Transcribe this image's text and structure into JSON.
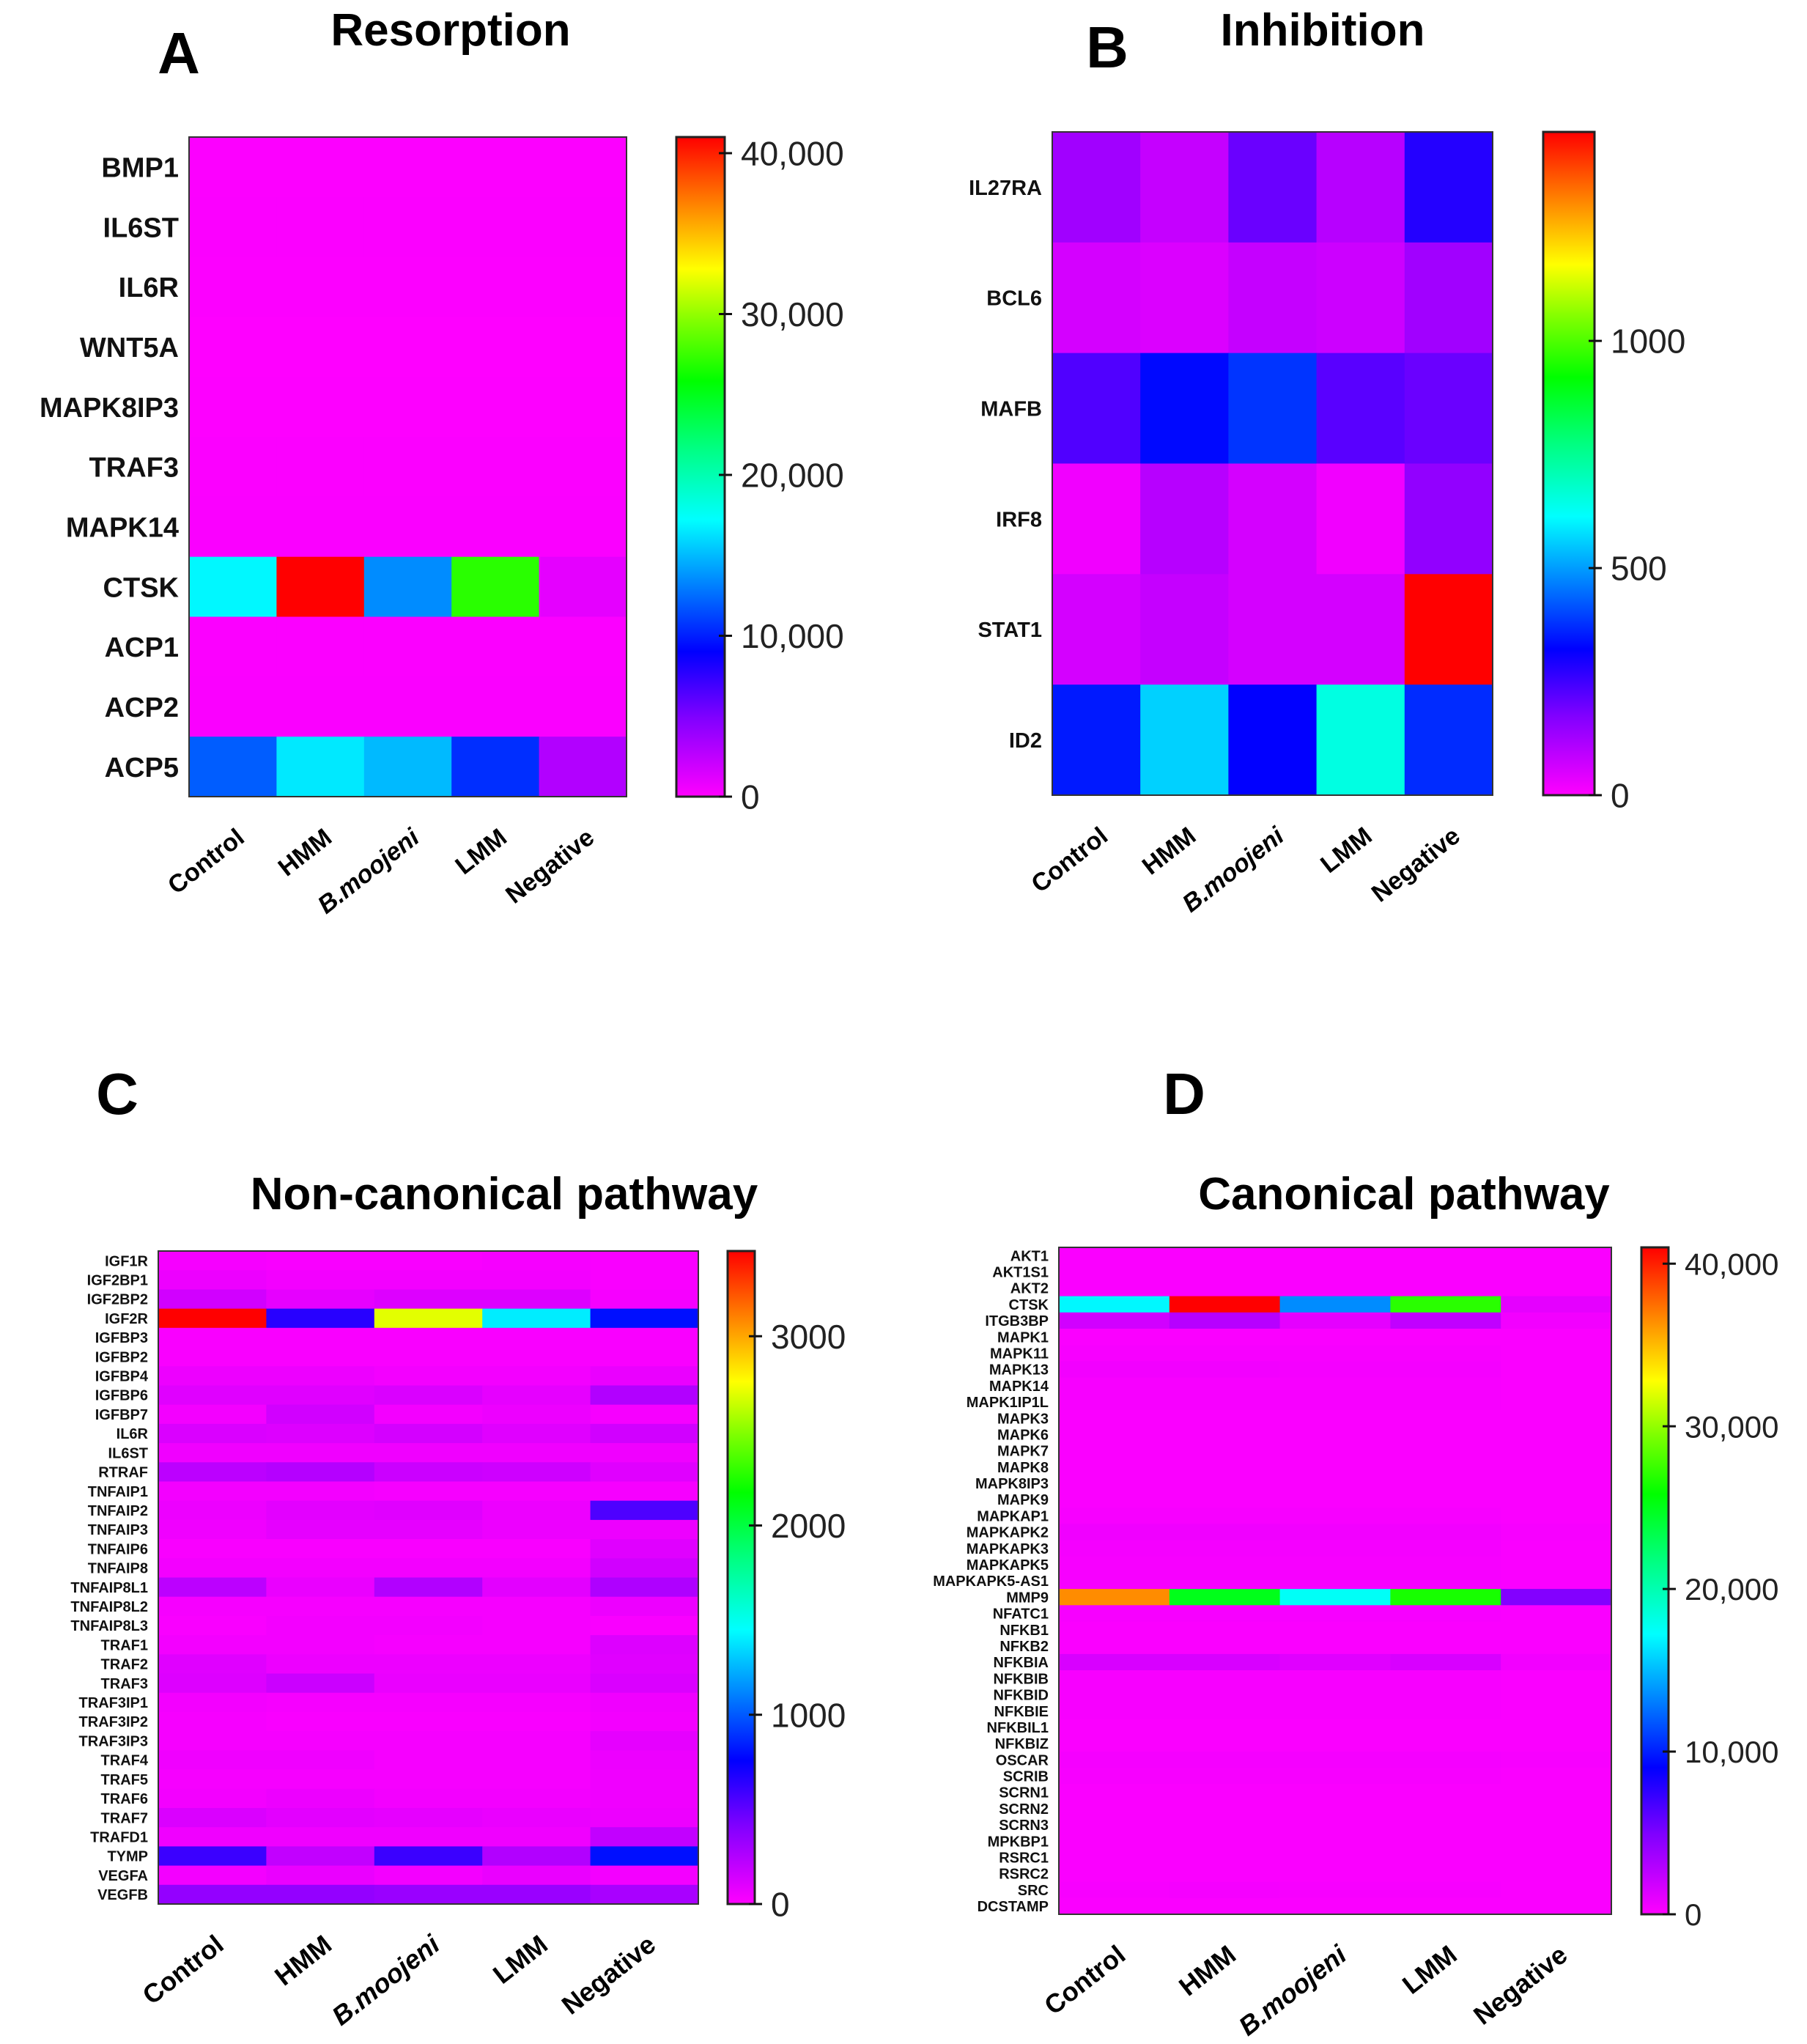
{
  "colormap": [
    [
      0.0,
      "#ff00ff"
    ],
    [
      0.12,
      "#8000ff"
    ],
    [
      0.22,
      "#0000ff"
    ],
    [
      0.32,
      "#0080ff"
    ],
    [
      0.42,
      "#00ffff"
    ],
    [
      0.53,
      "#00ff80"
    ],
    [
      0.63,
      "#00ff00"
    ],
    [
      0.72,
      "#80ff00"
    ],
    [
      0.8,
      "#ffff00"
    ],
    [
      0.9,
      "#ff8000"
    ],
    [
      1.0,
      "#ff0000"
    ]
  ],
  "chart_data": [
    {
      "type": "heatmap",
      "panel_letter": "A",
      "title": "Resorption",
      "columns": [
        "Control",
        "HMM",
        "B.moojeni",
        "LMM",
        "Negative"
      ],
      "rows": [
        "BMP1",
        "IL6ST",
        "IL6R",
        "WNT5A",
        "MAPK8IP3",
        "TRAF3",
        "MAPK14",
        "CTSK",
        "ACP1",
        "ACP2",
        "ACP5"
      ],
      "values": [
        [
          100,
          100,
          100,
          100,
          100
        ],
        [
          150,
          150,
          150,
          150,
          150
        ],
        [
          120,
          120,
          120,
          120,
          120
        ],
        [
          50,
          50,
          50,
          50,
          50
        ],
        [
          80,
          80,
          80,
          80,
          80
        ],
        [
          150,
          150,
          150,
          150,
          150
        ],
        [
          200,
          200,
          200,
          200,
          200
        ],
        [
          17000,
          41000,
          13500,
          27000,
          1000
        ],
        [
          150,
          150,
          150,
          150,
          150
        ],
        [
          200,
          200,
          200,
          200,
          200
        ],
        [
          12000,
          16500,
          15000,
          10500,
          3000
        ]
      ],
      "range": [
        0,
        41000
      ],
      "colorbar_ticks": [
        {
          "value": 0,
          "label": "0"
        },
        {
          "value": 10000,
          "label": "10,000"
        },
        {
          "value": 20000,
          "label": "20,000"
        },
        {
          "value": 30000,
          "label": "30,000"
        },
        {
          "value": 40000,
          "label": "40,000"
        }
      ]
    },
    {
      "type": "heatmap",
      "panel_letter": "B",
      "title": "Inhibition",
      "columns": [
        "Control",
        "HMM",
        "B.moojeni",
        "LMM",
        "Negative"
      ],
      "rows": [
        "IL27RA",
        "BCL6",
        "MAFB",
        "IRF8",
        "STAT1",
        "ID2"
      ],
      "values": [
        [
          130,
          80,
          200,
          100,
          280
        ],
        [
          60,
          50,
          80,
          70,
          130
        ],
        [
          230,
          330,
          380,
          220,
          200
        ],
        [
          20,
          100,
          60,
          20,
          150
        ],
        [
          60,
          80,
          60,
          60,
          1460
        ],
        [
          350,
          560,
          320,
          650,
          370
        ]
      ],
      "range": [
        0,
        1460
      ],
      "colorbar_ticks": [
        {
          "value": 0,
          "label": "0"
        },
        {
          "value": 500,
          "label": "500"
        },
        {
          "value": 1000,
          "label": "1000"
        }
      ]
    },
    {
      "type": "heatmap",
      "panel_letter": "C",
      "title": "Non-canonical pathway",
      "columns": [
        "Control",
        "HMM",
        "B.moojeni",
        "LMM",
        "Negative"
      ],
      "rows": [
        "IGF1R",
        "IGF2BP1",
        "IGF2BP2",
        "IGF2R",
        "IGFBP3",
        "IGFBP2",
        "IGFBP4",
        "IGFBP6",
        "IGFBP7",
        "IL6R",
        "IL6ST",
        "RTRAF",
        "TNFAIP1",
        "TNFAIP2",
        "TNFAIP3",
        "TNFAIP6",
        "TNFAIP8",
        "TNFAIP8L1",
        "TNFAIP8L2",
        "TNFAIP8L3",
        "TRAF1",
        "TRAF2",
        "TRAF3",
        "TRAF3IP1",
        "TRAF3IP2",
        "TRAF3IP3",
        "TRAF4",
        "TRAF5",
        "TRAF6",
        "TRAF7",
        "TRAFD1",
        "TYMP",
        "VEGFA",
        "VEGFB"
      ],
      "values": [
        [
          30,
          20,
          20,
          30,
          20
        ],
        [
          60,
          40,
          40,
          40,
          20
        ],
        [
          150,
          80,
          110,
          110,
          30
        ],
        [
          3450,
          650,
          2700,
          1400,
          800
        ],
        [
          20,
          20,
          20,
          20,
          20
        ],
        [
          20,
          20,
          20,
          20,
          20
        ],
        [
          60,
          60,
          40,
          40,
          70
        ],
        [
          100,
          100,
          120,
          80,
          250
        ],
        [
          40,
          150,
          40,
          60,
          30
        ],
        [
          120,
          110,
          140,
          100,
          150
        ],
        [
          50,
          50,
          50,
          50,
          50
        ],
        [
          220,
          240,
          170,
          160,
          100
        ],
        [
          40,
          40,
          30,
          30,
          30
        ],
        [
          60,
          90,
          100,
          60,
          550
        ],
        [
          50,
          80,
          80,
          60,
          60
        ],
        [
          20,
          20,
          20,
          20,
          100
        ],
        [
          40,
          40,
          40,
          40,
          150
        ],
        [
          220,
          70,
          250,
          90,
          260
        ],
        [
          30,
          30,
          30,
          30,
          60
        ],
        [
          20,
          40,
          40,
          30,
          20
        ],
        [
          40,
          40,
          30,
          30,
          110
        ],
        [
          100,
          60,
          60,
          60,
          100
        ],
        [
          110,
          170,
          70,
          70,
          120
        ],
        [
          40,
          30,
          30,
          30,
          50
        ],
        [
          30,
          20,
          20,
          20,
          40
        ],
        [
          30,
          30,
          30,
          30,
          80
        ],
        [
          50,
          50,
          30,
          30,
          60
        ],
        [
          30,
          30,
          30,
          30,
          50
        ],
        [
          40,
          60,
          40,
          40,
          50
        ],
        [
          120,
          90,
          80,
          70,
          60
        ],
        [
          50,
          50,
          50,
          50,
          200
        ],
        [
          600,
          200,
          600,
          250,
          800
        ],
        [
          40,
          70,
          40,
          70,
          40
        ],
        [
          350,
          350,
          330,
          330,
          280
        ]
      ],
      "range": [
        0,
        3450
      ],
      "colorbar_ticks": [
        {
          "value": 0,
          "label": "0"
        },
        {
          "value": 1000,
          "label": "1000"
        },
        {
          "value": 2000,
          "label": "2000"
        },
        {
          "value": 3000,
          "label": "3000"
        }
      ]
    },
    {
      "type": "heatmap",
      "panel_letter": "D",
      "title": "Canonical pathway",
      "columns": [
        "Control",
        "HMM",
        "B.moojeni",
        "LMM",
        "Negative"
      ],
      "rows": [
        "AKT1",
        "AKT1S1",
        "AKT2",
        "CTSK",
        "ITGB3BP",
        "MAPK1",
        "MAPK11",
        "MAPK13",
        "MAPK14",
        "MAPK1IP1L",
        "MAPK3",
        "MAPK6",
        "MAPK7",
        "MAPK8",
        "MAPK8IP3",
        "MAPK9",
        "MAPKAP1",
        "MAPKAPK2",
        "MAPKAPK3",
        "MAPKAPK5",
        "MAPKAPK5-AS1",
        "MMP9",
        "NFATC1",
        "NFKB1",
        "NFKB2",
        "NFKBIA",
        "NFKBIB",
        "NFKBID",
        "NFKBIE",
        "NFKBIL1",
        "NFKBIZ",
        "OSCAR",
        "SCRIB",
        "SCRN1",
        "SCRN2",
        "SCRN3",
        "MPKBP1",
        "RSRC1",
        "RSRC2",
        "SRC",
        "DCSTAMP"
      ],
      "values": [
        [
          200,
          200,
          200,
          200,
          200
        ],
        [
          200,
          200,
          200,
          200,
          200
        ],
        [
          200,
          200,
          200,
          200,
          200
        ],
        [
          17000,
          41000,
          13500,
          27000,
          1000
        ],
        [
          1800,
          2800,
          1000,
          2400,
          500
        ],
        [
          200,
          200,
          200,
          200,
          200
        ],
        [
          300,
          300,
          300,
          300,
          200
        ],
        [
          500,
          500,
          400,
          400,
          200
        ],
        [
          300,
          300,
          300,
          300,
          200
        ],
        [
          300,
          300,
          300,
          300,
          200
        ],
        [
          200,
          200,
          200,
          200,
          200
        ],
        [
          200,
          200,
          200,
          200,
          200
        ],
        [
          200,
          200,
          200,
          200,
          200
        ],
        [
          200,
          200,
          200,
          200,
          200
        ],
        [
          200,
          200,
          200,
          200,
          200
        ],
        [
          200,
          200,
          200,
          200,
          200
        ],
        [
          300,
          300,
          300,
          300,
          200
        ],
        [
          600,
          600,
          500,
          500,
          300
        ],
        [
          400,
          400,
          400,
          400,
          200
        ],
        [
          300,
          300,
          300,
          300,
          200
        ],
        [
          300,
          300,
          300,
          300,
          200
        ],
        [
          36500,
          25000,
          17500,
          26500,
          4800
        ],
        [
          300,
          300,
          300,
          300,
          200
        ],
        [
          200,
          200,
          200,
          200,
          200
        ],
        [
          200,
          200,
          200,
          200,
          200
        ],
        [
          1500,
          1500,
          1200,
          1500,
          500
        ],
        [
          300,
          300,
          300,
          300,
          200
        ],
        [
          300,
          300,
          300,
          300,
          200
        ],
        [
          300,
          300,
          300,
          300,
          200
        ],
        [
          200,
          200,
          200,
          200,
          200
        ],
        [
          200,
          200,
          200,
          200,
          200
        ],
        [
          400,
          400,
          400,
          400,
          300
        ],
        [
          300,
          300,
          300,
          300,
          200
        ],
        [
          200,
          200,
          200,
          200,
          200
        ],
        [
          200,
          200,
          200,
          200,
          200
        ],
        [
          200,
          200,
          200,
          200,
          200
        ],
        [
          200,
          200,
          200,
          200,
          200
        ],
        [
          200,
          200,
          200,
          200,
          200
        ],
        [
          200,
          200,
          200,
          200,
          200
        ],
        [
          300,
          400,
          300,
          300,
          200
        ],
        [
          200,
          200,
          200,
          200,
          200
        ]
      ],
      "range": [
        0,
        41000
      ],
      "colorbar_ticks": [
        {
          "value": 0,
          "label": "0"
        },
        {
          "value": 10000,
          "label": "10,000"
        },
        {
          "value": 20000,
          "label": "20,000"
        },
        {
          "value": 30000,
          "label": "30,000"
        },
        {
          "value": 40000,
          "label": "40,000"
        }
      ]
    }
  ]
}
